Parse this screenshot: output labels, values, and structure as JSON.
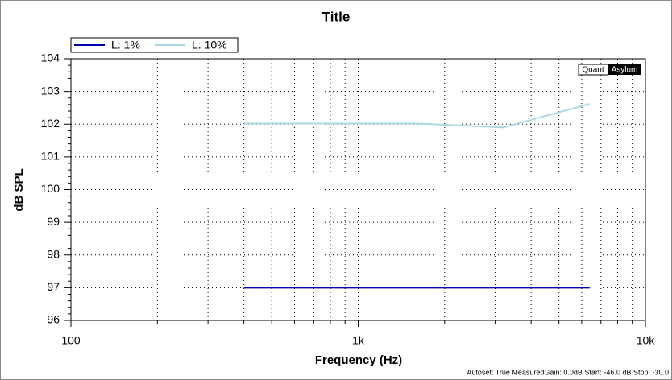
{
  "chart_data": {
    "type": "line",
    "title": "Title",
    "xlabel": "Frequency (Hz)",
    "ylabel": "dB SPL",
    "x": [
      400,
      800,
      1600,
      3200,
      6400
    ],
    "series": [
      {
        "name": "L: 1%",
        "color": "#0000b0",
        "values": [
          97,
          97,
          97,
          97,
          97
        ]
      },
      {
        "name": "L: 10%",
        "color": "#a8d8e4",
        "values": [
          102.02,
          102.02,
          102.02,
          101.9,
          102.62
        ]
      }
    ],
    "xscale": "log",
    "xlim": [
      100,
      10000
    ],
    "xticks": [
      {
        "value": 100,
        "label": "100"
      },
      {
        "value": 1000,
        "label": "1k"
      },
      {
        "value": 10000,
        "label": "10k"
      }
    ],
    "ylim": [
      96,
      104
    ],
    "yticks": [
      96,
      97,
      98,
      99,
      100,
      101,
      102,
      103,
      104
    ],
    "grid": true,
    "legend": "top-left",
    "logo": [
      "Quant",
      "Asylum"
    ],
    "footer": "Autoset: True MeasuredGain: 0.0dB  Start: -46.0 dB Stop: -30.0"
  }
}
